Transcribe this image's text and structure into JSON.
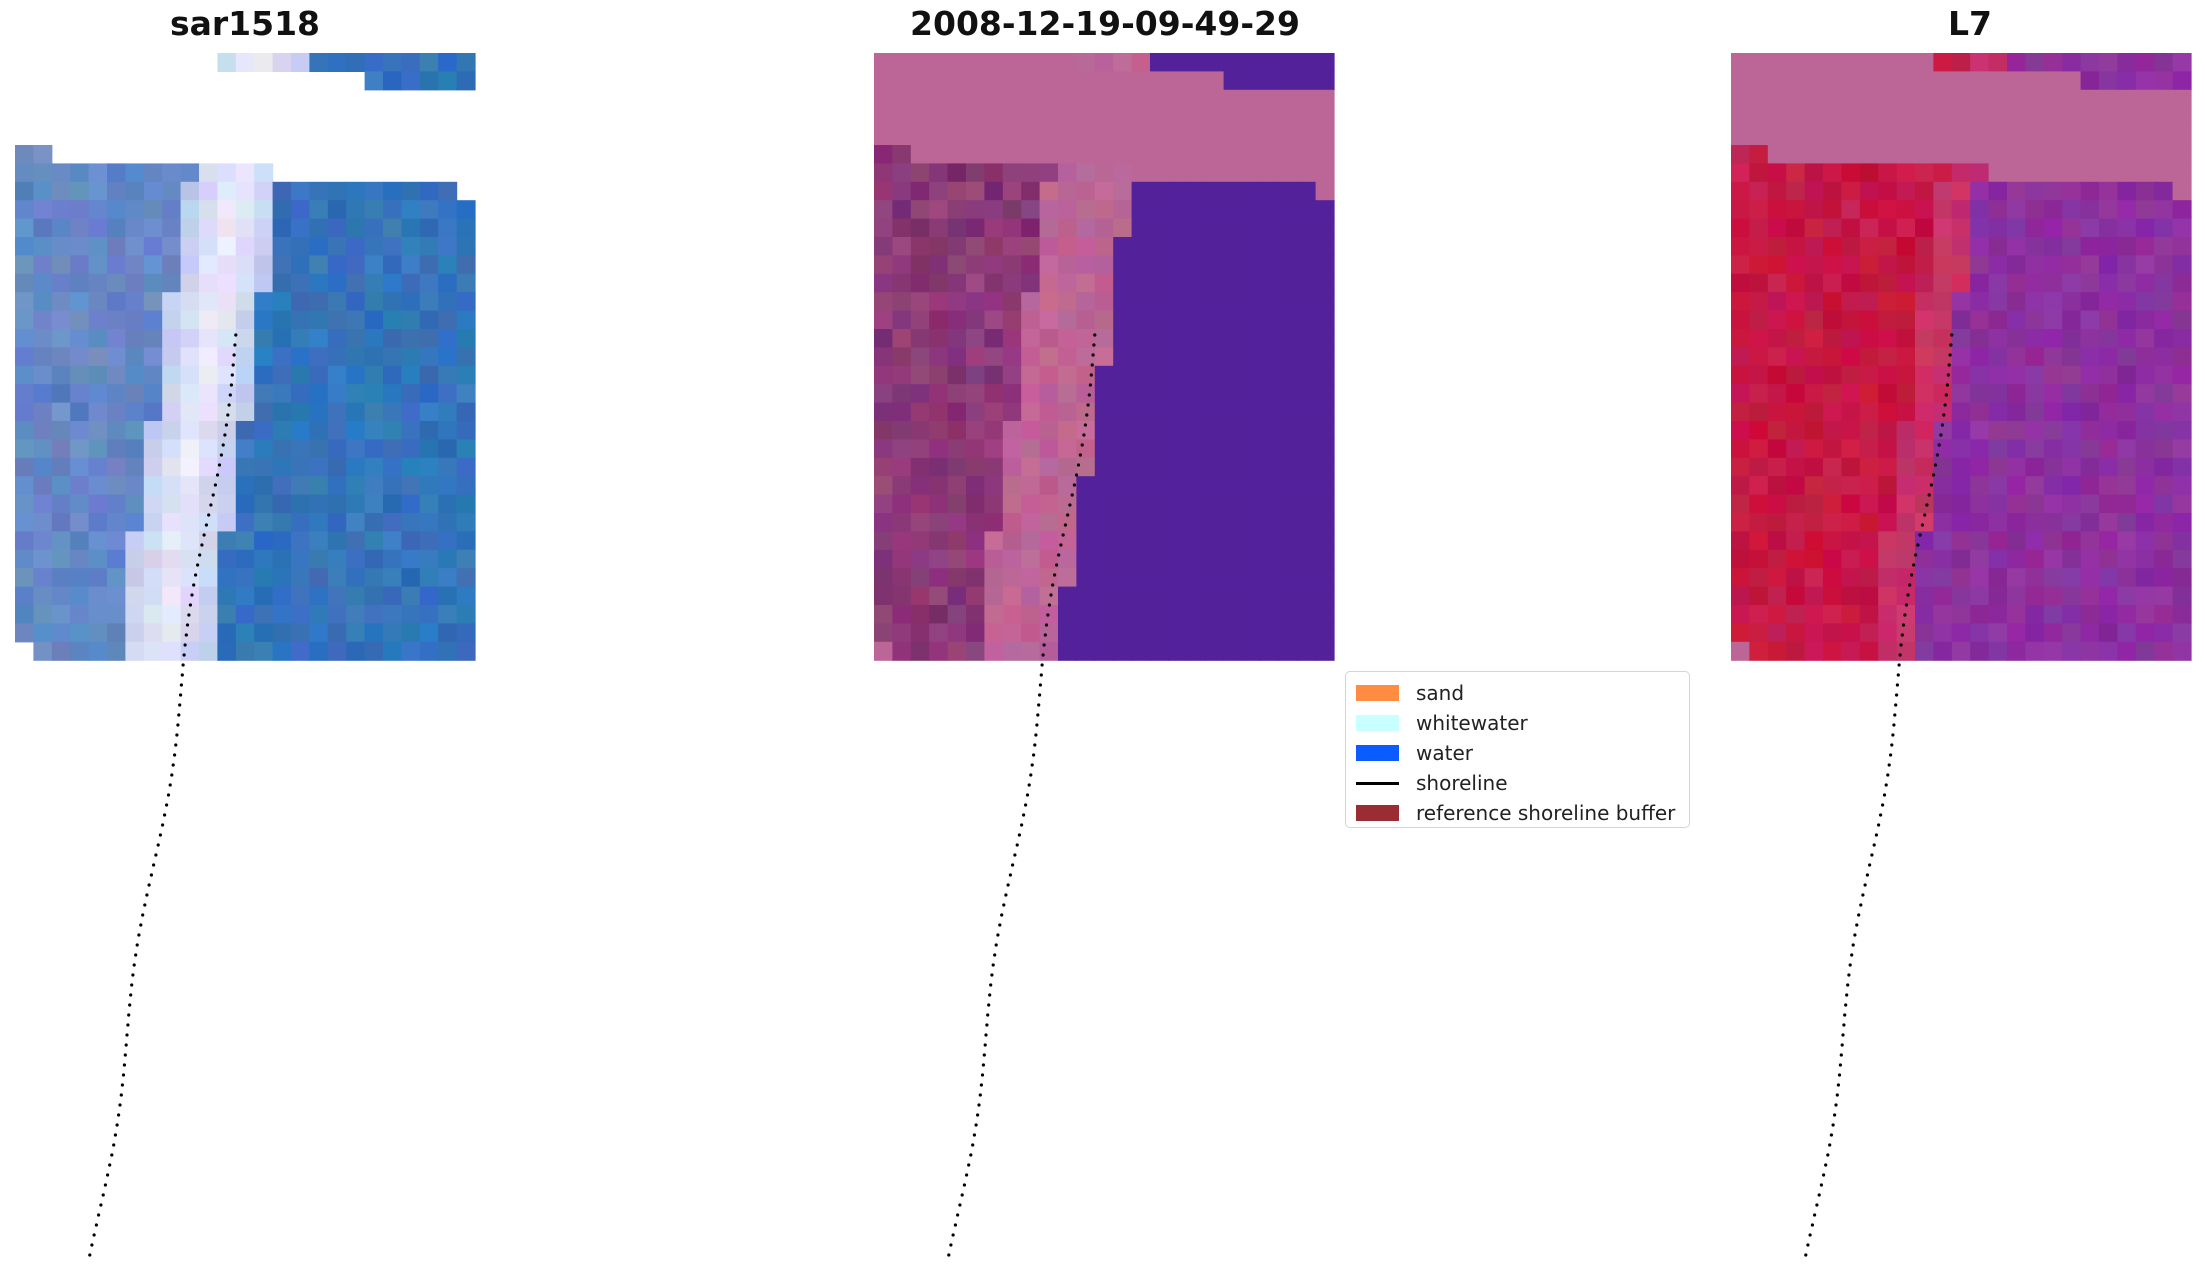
{
  "panels": [
    {
      "title": "sar1518",
      "style": "rgb"
    },
    {
      "title": "2008-12-19-09-49-29",
      "style": "classified"
    },
    {
      "title": "L7",
      "style": "nir"
    }
  ],
  "legend": {
    "entries": [
      {
        "label": "sand",
        "type": "patch",
        "color": "#ff8c40"
      },
      {
        "label": "whitewater",
        "type": "patch",
        "color": "#c8ffff"
      },
      {
        "label": "water",
        "type": "patch",
        "color": "#0a5cff"
      },
      {
        "label": "shoreline",
        "type": "line",
        "color": "#000000"
      },
      {
        "label": "reference shoreline buffer",
        "type": "patch",
        "color": "#9b2c33"
      }
    ]
  }
}
